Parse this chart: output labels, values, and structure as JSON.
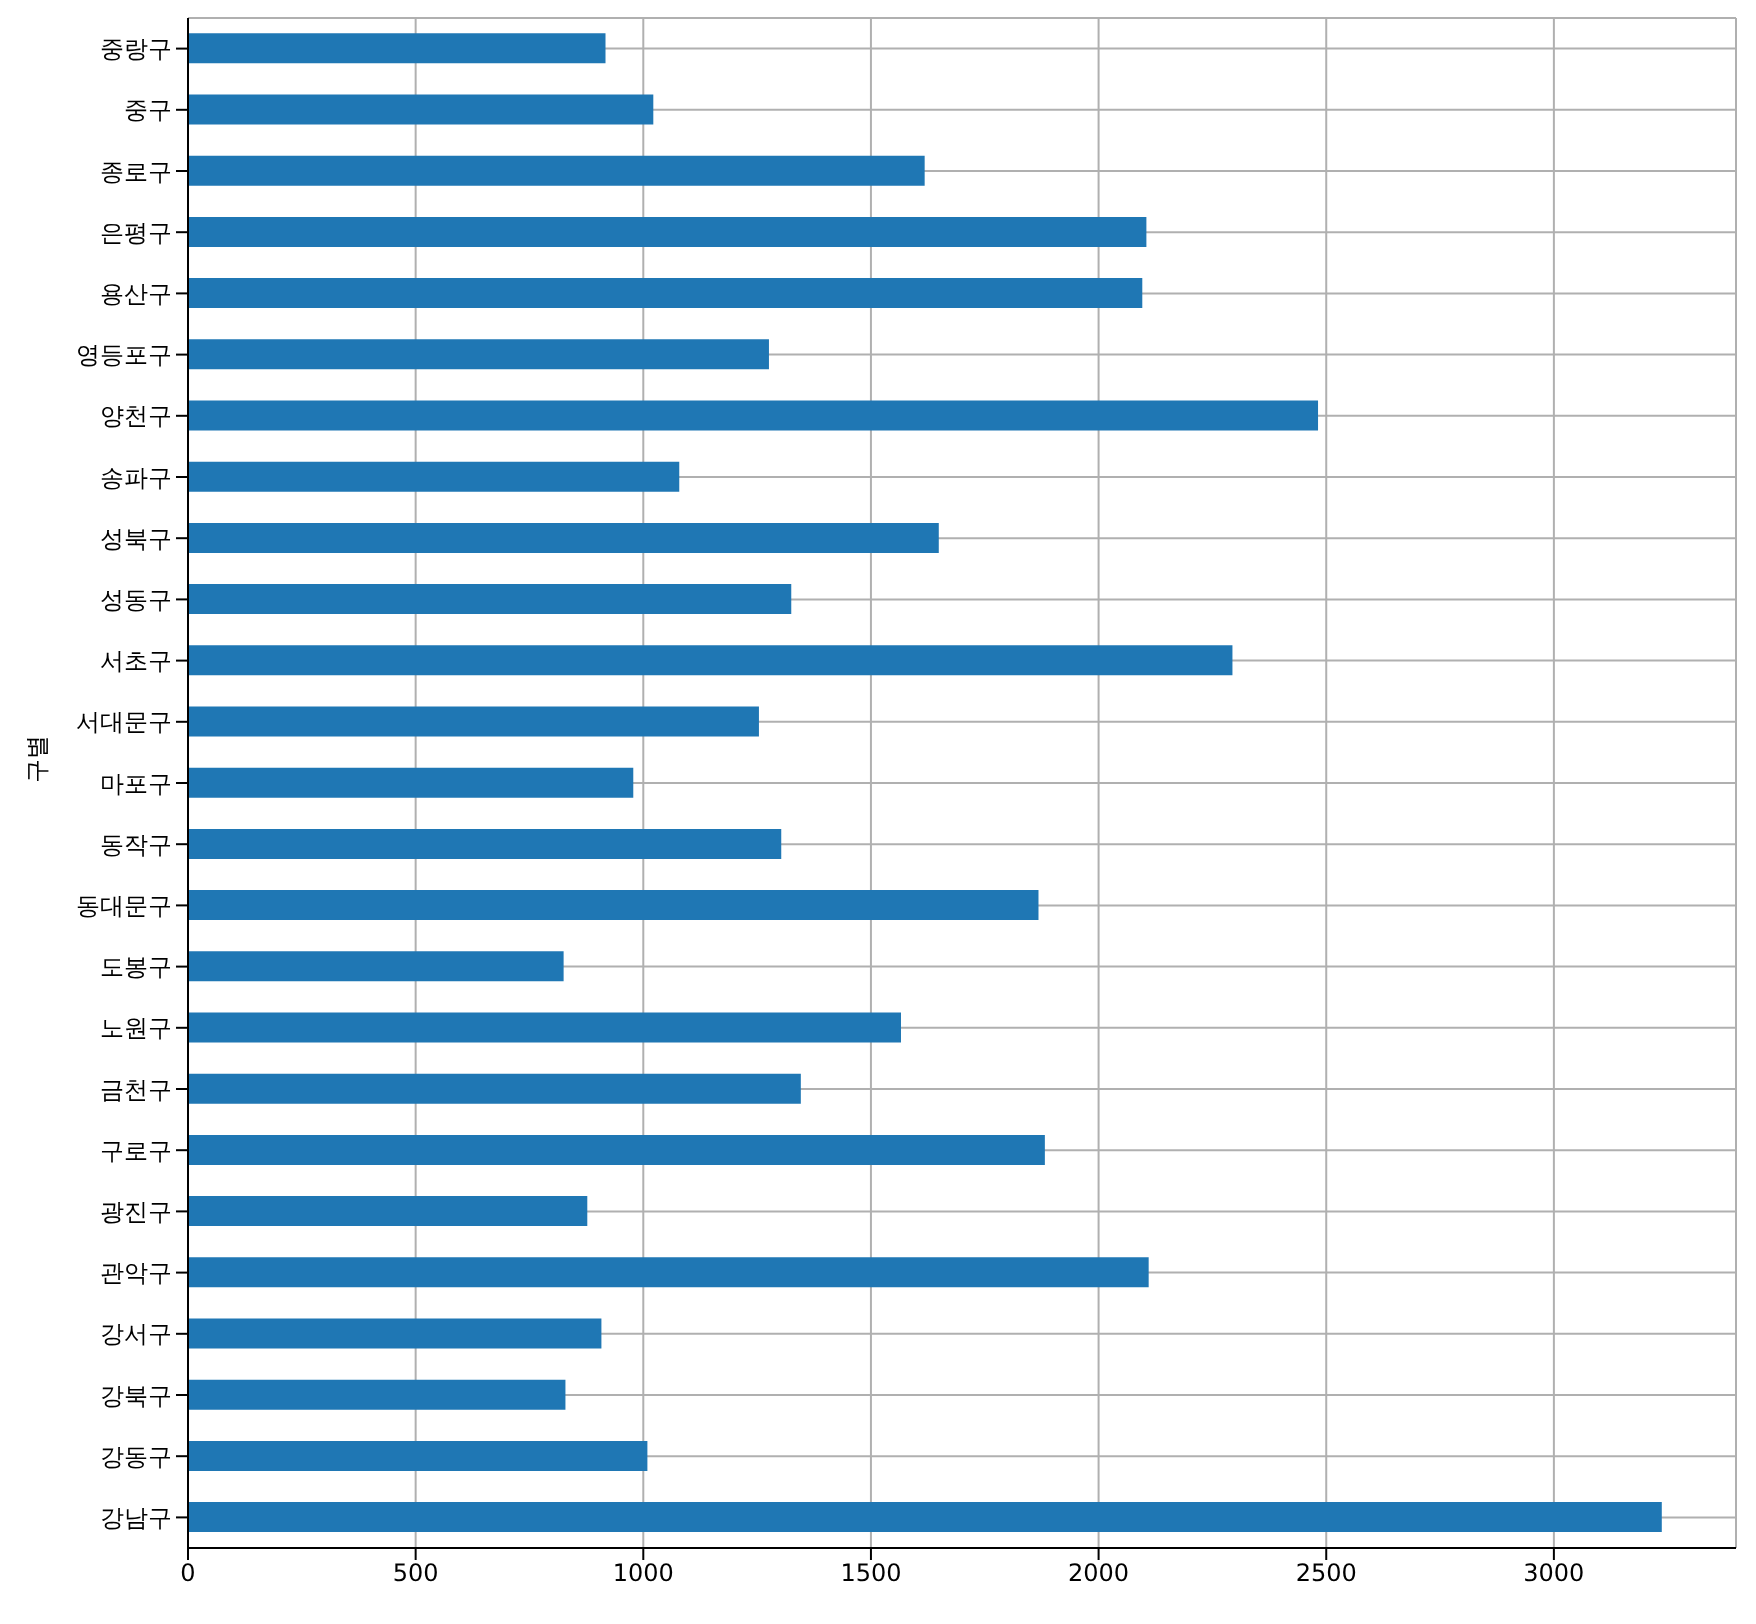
{
  "chart_data": {
    "type": "bar",
    "orientation": "horizontal",
    "ylabel": "구별",
    "categories": [
      "중랑구",
      "중구",
      "종로구",
      "은평구",
      "용산구",
      "영등포구",
      "양천구",
      "송파구",
      "성북구",
      "성동구",
      "서초구",
      "서대문구",
      "마포구",
      "동작구",
      "동대문구",
      "도봉구",
      "노원구",
      "금천구",
      "구로구",
      "광진구",
      "관악구",
      "강서구",
      "강북구",
      "강동구",
      "강남구"
    ],
    "values": [
      917,
      1022,
      1618,
      2105,
      2096,
      1276,
      2482,
      1079,
      1649,
      1325,
      2294,
      1254,
      978,
      1303,
      1868,
      825,
      1566,
      1346,
      1882,
      877,
      2110,
      908,
      829,
      1009,
      3237
    ],
    "color": "#1f77b4",
    "xlim": [
      0,
      3400
    ],
    "xticks": [
      0,
      500,
      1000,
      1500,
      2000,
      2500,
      3000
    ],
    "grid": true
  }
}
